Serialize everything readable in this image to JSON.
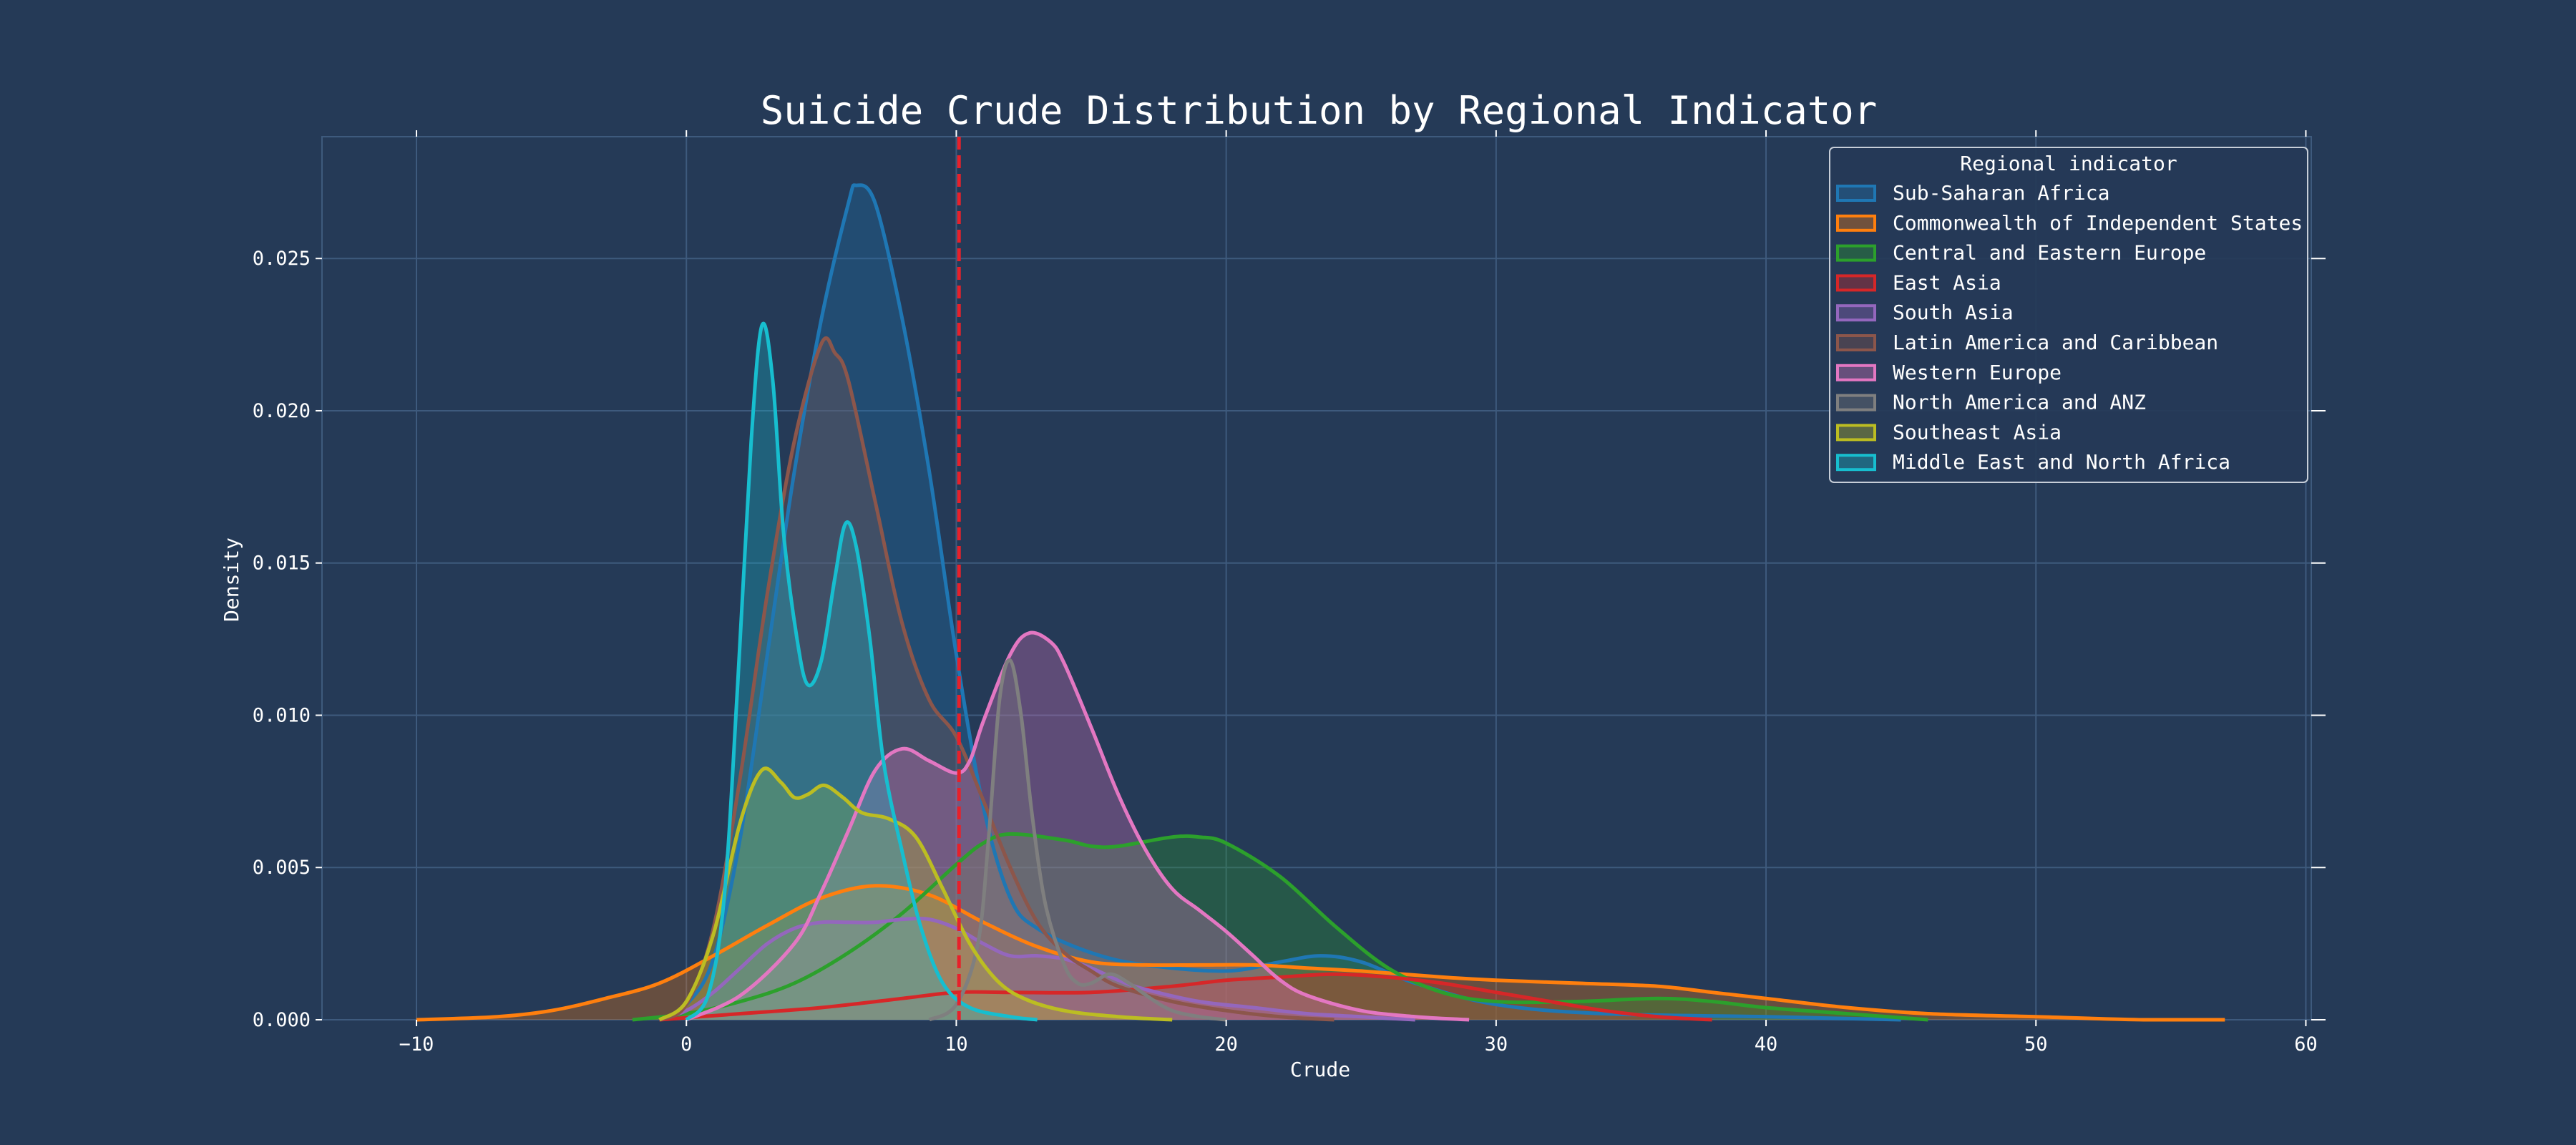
{
  "chart_data": {
    "type": "area",
    "title": "Suicide Crude Distribution by Regional Indicator",
    "xlabel": "Crude",
    "ylabel": "Density",
    "xlim": [
      -13.5,
      60.2
    ],
    "ylim": [
      0,
      0.029
    ],
    "x_ticks": [
      -10,
      0,
      10,
      20,
      30,
      40,
      50,
      60
    ],
    "y_ticks": [
      0.0,
      0.005,
      0.01,
      0.015,
      0.02,
      0.025
    ],
    "y_tick_labels": [
      "0.000",
      "0.005",
      "0.010",
      "0.015",
      "0.020",
      "0.025"
    ],
    "grid": true,
    "reference_line": {
      "x": 10.1,
      "color": "#e8202a",
      "style": "dashed"
    },
    "legend": {
      "title": "Regional indicator",
      "placement": "top-right"
    },
    "series": [
      {
        "name": "Sub-Saharan Africa",
        "color": "#1f77b4",
        "points": [
          [
            -1,
            0
          ],
          [
            0,
            0.0005
          ],
          [
            1,
            0.002
          ],
          [
            2,
            0.006
          ],
          [
            3,
            0.012
          ],
          [
            4,
            0.018
          ],
          [
            5,
            0.023
          ],
          [
            6,
            0.0268
          ],
          [
            6.3,
            0.0274
          ],
          [
            7,
            0.0268
          ],
          [
            8,
            0.023
          ],
          [
            9,
            0.018
          ],
          [
            10,
            0.012
          ],
          [
            11,
            0.007
          ],
          [
            12,
            0.004
          ],
          [
            13,
            0.003
          ],
          [
            15,
            0.0022
          ],
          [
            17,
            0.0018
          ],
          [
            20,
            0.0016
          ],
          [
            22,
            0.0019
          ],
          [
            23.5,
            0.0021
          ],
          [
            25,
            0.0019
          ],
          [
            27,
            0.0012
          ],
          [
            30,
            0.0005
          ],
          [
            34,
            0.0002
          ],
          [
            40,
            0.0001
          ],
          [
            45,
            0
          ]
        ]
      },
      {
        "name": "Commonwealth of Independent States",
        "color": "#ff7f0e",
        "points": [
          [
            -10,
            0
          ],
          [
            -7,
            0.0001
          ],
          [
            -5,
            0.0003
          ],
          [
            -3,
            0.0007
          ],
          [
            -1,
            0.0012
          ],
          [
            1,
            0.0021
          ],
          [
            3,
            0.0031
          ],
          [
            5,
            0.004
          ],
          [
            7,
            0.0044
          ],
          [
            9,
            0.0041
          ],
          [
            11,
            0.0032
          ],
          [
            13,
            0.0024
          ],
          [
            15,
            0.0019
          ],
          [
            17,
            0.0018
          ],
          [
            19,
            0.0018
          ],
          [
            21,
            0.0018
          ],
          [
            23,
            0.0017
          ],
          [
            25,
            0.0016
          ],
          [
            28,
            0.0014
          ],
          [
            30,
            0.0013
          ],
          [
            33,
            0.0012
          ],
          [
            36,
            0.0011
          ],
          [
            38,
            0.0009
          ],
          [
            40,
            0.0007
          ],
          [
            43,
            0.0004
          ],
          [
            46,
            0.0002
          ],
          [
            50,
            0.0001
          ],
          [
            54,
            0
          ],
          [
            57,
            0
          ]
        ]
      },
      {
        "name": "Central and Eastern Europe",
        "color": "#2ca02c",
        "points": [
          [
            -2,
            0
          ],
          [
            0,
            0.0002
          ],
          [
            2,
            0.0006
          ],
          [
            4,
            0.0012
          ],
          [
            6,
            0.0022
          ],
          [
            8,
            0.0035
          ],
          [
            10,
            0.0051
          ],
          [
            11,
            0.0058
          ],
          [
            12,
            0.0061
          ],
          [
            14,
            0.0059
          ],
          [
            15,
            0.0057
          ],
          [
            16,
            0.0057
          ],
          [
            18,
            0.006
          ],
          [
            19,
            0.006
          ],
          [
            20,
            0.0058
          ],
          [
            22,
            0.0047
          ],
          [
            24,
            0.0031
          ],
          [
            26,
            0.0017
          ],
          [
            28,
            0.0009
          ],
          [
            30,
            0.0006
          ],
          [
            33,
            0.0006
          ],
          [
            36,
            0.0007
          ],
          [
            38,
            0.0006
          ],
          [
            40,
            0.0004
          ],
          [
            43,
            0.0002
          ],
          [
            46,
            0
          ]
        ]
      },
      {
        "name": "East Asia",
        "color": "#d62728",
        "points": [
          [
            -1,
            0
          ],
          [
            2,
            0.0002
          ],
          [
            5,
            0.0004
          ],
          [
            8,
            0.0007
          ],
          [
            10,
            0.0009
          ],
          [
            12,
            0.0009
          ],
          [
            15,
            0.0009
          ],
          [
            18,
            0.0011
          ],
          [
            20,
            0.0013
          ],
          [
            22,
            0.0014
          ],
          [
            24,
            0.0015
          ],
          [
            26,
            0.0014
          ],
          [
            28,
            0.0012
          ],
          [
            30,
            0.0009
          ],
          [
            32,
            0.0006
          ],
          [
            34,
            0.0003
          ],
          [
            36,
            0.0001
          ],
          [
            38,
            0
          ]
        ]
      },
      {
        "name": "South Asia",
        "color": "#9467bd",
        "points": [
          [
            -1,
            0
          ],
          [
            0,
            0.0003
          ],
          [
            1,
            0.0009
          ],
          [
            2,
            0.0017
          ],
          [
            3,
            0.0025
          ],
          [
            4,
            0.003
          ],
          [
            5,
            0.0032
          ],
          [
            6,
            0.0032
          ],
          [
            7,
            0.0032
          ],
          [
            8,
            0.0033
          ],
          [
            9,
            0.0033
          ],
          [
            10,
            0.003
          ],
          [
            11,
            0.0025
          ],
          [
            12,
            0.0021
          ],
          [
            13,
            0.0021
          ],
          [
            14,
            0.002
          ],
          [
            15,
            0.0017
          ],
          [
            16,
            0.0013
          ],
          [
            17,
            0.001
          ],
          [
            19,
            0.0006
          ],
          [
            21,
            0.0004
          ],
          [
            23,
            0.0002
          ],
          [
            25,
            0.0001
          ],
          [
            27,
            0
          ]
        ]
      },
      {
        "name": "Latin America and Caribbean",
        "color": "#8c564b",
        "points": [
          [
            -1,
            0
          ],
          [
            0,
            0.0005
          ],
          [
            1,
            0.003
          ],
          [
            2,
            0.008
          ],
          [
            3,
            0.014
          ],
          [
            4,
            0.019
          ],
          [
            5,
            0.0222
          ],
          [
            5.5,
            0.0219
          ],
          [
            6,
            0.021
          ],
          [
            7,
            0.017
          ],
          [
            8,
            0.013
          ],
          [
            9,
            0.0105
          ],
          [
            10,
            0.0093
          ],
          [
            11,
            0.0072
          ],
          [
            12,
            0.005
          ],
          [
            13,
            0.0032
          ],
          [
            14,
            0.0022
          ],
          [
            15,
            0.0016
          ],
          [
            16,
            0.0011
          ],
          [
            18,
            0.0006
          ],
          [
            20,
            0.0003
          ],
          [
            22,
            0.0001
          ],
          [
            24,
            0
          ]
        ]
      },
      {
        "name": "Western Europe",
        "color": "#e377c2",
        "points": [
          [
            0,
            0
          ],
          [
            2,
            0.0008
          ],
          [
            4,
            0.0025
          ],
          [
            5,
            0.0042
          ],
          [
            6,
            0.0062
          ],
          [
            7,
            0.0082
          ],
          [
            8,
            0.0089
          ],
          [
            9,
            0.0085
          ],
          [
            10,
            0.0081
          ],
          [
            10.5,
            0.0085
          ],
          [
            11,
            0.0098
          ],
          [
            12,
            0.012
          ],
          [
            12.7,
            0.0127
          ],
          [
            13.5,
            0.0124
          ],
          [
            14,
            0.0117
          ],
          [
            15,
            0.0096
          ],
          [
            16,
            0.0074
          ],
          [
            17,
            0.0056
          ],
          [
            18,
            0.0043
          ],
          [
            19,
            0.0036
          ],
          [
            20,
            0.0029
          ],
          [
            21,
            0.0021
          ],
          [
            22,
            0.0013
          ],
          [
            23,
            0.0008
          ],
          [
            25,
            0.0003
          ],
          [
            27,
            0.0001
          ],
          [
            29,
            0
          ]
        ]
      },
      {
        "name": "North America and ANZ",
        "color": "#7f7f7f",
        "points": [
          [
            9,
            0
          ],
          [
            10,
            0.0005
          ],
          [
            10.8,
            0.0025
          ],
          [
            11.2,
            0.006
          ],
          [
            11.6,
            0.0105
          ],
          [
            12,
            0.0118
          ],
          [
            12.4,
            0.01
          ],
          [
            12.8,
            0.0068
          ],
          [
            13.3,
            0.0038
          ],
          [
            14,
            0.0018
          ],
          [
            14.5,
            0.0012
          ],
          [
            15,
            0.0012
          ],
          [
            15.7,
            0.0015
          ],
          [
            16.4,
            0.0012
          ],
          [
            17.2,
            0.0007
          ],
          [
            18,
            0.0003
          ],
          [
            19,
            0.0001
          ],
          [
            20,
            0
          ]
        ]
      },
      {
        "name": "Southeast Asia",
        "color": "#bcbd22",
        "points": [
          [
            -1,
            0
          ],
          [
            0,
            0.0006
          ],
          [
            1,
            0.0028
          ],
          [
            2,
            0.0065
          ],
          [
            2.8,
            0.0082
          ],
          [
            3.5,
            0.0078
          ],
          [
            4,
            0.0073
          ],
          [
            4.5,
            0.0074
          ],
          [
            5.1,
            0.0077
          ],
          [
            5.8,
            0.0073
          ],
          [
            6.5,
            0.0068
          ],
          [
            7.5,
            0.0066
          ],
          [
            8.5,
            0.006
          ],
          [
            9.5,
            0.0043
          ],
          [
            10.5,
            0.0025
          ],
          [
            11.5,
            0.0013
          ],
          [
            12.5,
            0.0007
          ],
          [
            14,
            0.0003
          ],
          [
            16,
            0.0001
          ],
          [
            18,
            0
          ]
        ]
      },
      {
        "name": "Middle East and North Africa",
        "color": "#17becf",
        "points": [
          [
            0,
            0
          ],
          [
            0.8,
            0.0008
          ],
          [
            1.4,
            0.004
          ],
          [
            1.9,
            0.011
          ],
          [
            2.4,
            0.019
          ],
          [
            2.8,
            0.0228
          ],
          [
            3.2,
            0.021
          ],
          [
            3.6,
            0.016
          ],
          [
            4.1,
            0.0125
          ],
          [
            4.5,
            0.011
          ],
          [
            5,
            0.0118
          ],
          [
            5.5,
            0.0145
          ],
          [
            5.9,
            0.0163
          ],
          [
            6.3,
            0.0155
          ],
          [
            6.8,
            0.0125
          ],
          [
            7.3,
            0.0085
          ],
          [
            8,
            0.0055
          ],
          [
            8.7,
            0.003
          ],
          [
            9.5,
            0.0012
          ],
          [
            10.5,
            0.0004
          ],
          [
            12,
            0.0001
          ],
          [
            13,
            0
          ]
        ]
      }
    ]
  }
}
